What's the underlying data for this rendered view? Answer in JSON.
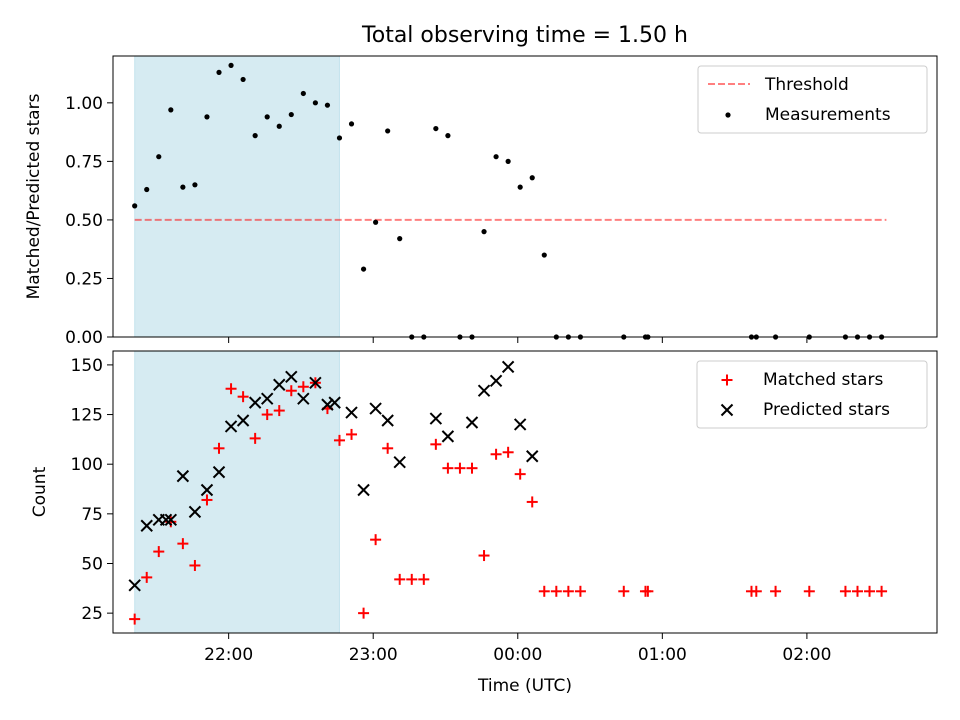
{
  "chart_data": [
    {
      "type": "scatter",
      "title": "Total observing time = 1.50 h",
      "xlabel": "",
      "ylabel": "Matched/Predicted stars",
      "xlim": [
        "21:12",
        "02:54"
      ],
      "ylim": [
        0,
        1.2
      ],
      "grid": false,
      "legend": "top-right",
      "x_tick_labels": [
        "22:00",
        "23:00",
        "00:00",
        "01:00",
        "02:00"
      ],
      "y_ticks": [
        0.0,
        0.25,
        0.5,
        0.75,
        1.0
      ],
      "y_tick_labels": [
        "0.00",
        "0.25",
        "0.50",
        "0.75",
        "1.00"
      ],
      "shaded_span": {
        "from": "21:21",
        "to": "22:46"
      },
      "threshold": {
        "name": "Threshold",
        "value": 0.5,
        "from": "21:21",
        "to": "02:33"
      },
      "series": [
        {
          "name": "Measurements",
          "x": [
            "21:21",
            "21:26",
            "21:31",
            "21:36",
            "21:41",
            "21:46",
            "21:51",
            "21:56",
            "22:01",
            "22:06",
            "22:11",
            "22:16",
            "22:21",
            "22:26",
            "22:31",
            "22:36",
            "22:41",
            "22:46",
            "22:51",
            "22:56",
            "23:01",
            "23:06",
            "23:11",
            "23:16",
            "23:21",
            "23:26",
            "23:31",
            "23:36",
            "23:41",
            "23:46",
            "23:51",
            "23:56",
            "00:01",
            "00:06",
            "00:11",
            "00:16",
            "00:21",
            "00:26",
            "00:44",
            "00:53",
            "00:54",
            "01:37",
            "01:39",
            "01:47",
            "02:01",
            "02:16",
            "02:21",
            "02:26",
            "02:31"
          ],
          "y": [
            0.56,
            0.63,
            0.77,
            0.97,
            0.64,
            0.65,
            0.94,
            1.13,
            1.16,
            1.1,
            0.86,
            0.94,
            0.9,
            0.95,
            1.04,
            1.0,
            0.99,
            0.85,
            0.91,
            0.29,
            0.49,
            0.88,
            0.42,
            0.0,
            0.0,
            0.89,
            0.86,
            0.0,
            0.0,
            0.45,
            0.77,
            0.75,
            0.64,
            0.68,
            0.35,
            0.0,
            0.0,
            0.0,
            0.0,
            0.0,
            0.0,
            0.0,
            0.0,
            0.0,
            0.0,
            0.0,
            0.0,
            0.0,
            0.0
          ]
        }
      ]
    },
    {
      "type": "scatter",
      "title": "",
      "xlabel": "Time (UTC)",
      "ylabel": "Count",
      "xlim": [
        "21:12",
        "02:54"
      ],
      "ylim": [
        15,
        157
      ],
      "grid": false,
      "legend": "top-right",
      "x_tick_labels": [
        "22:00",
        "23:00",
        "00:00",
        "01:00",
        "02:00"
      ],
      "y_ticks": [
        25,
        50,
        75,
        100,
        125,
        150
      ],
      "y_tick_labels": [
        "25",
        "50",
        "75",
        "100",
        "125",
        "150"
      ],
      "shaded_span": {
        "from": "21:21",
        "to": "22:46"
      },
      "series": [
        {
          "name": "Matched stars",
          "marker": "plus",
          "color": "#ff0000",
          "x": [
            "21:21",
            "21:26",
            "21:31",
            "21:36",
            "21:41",
            "21:46",
            "21:51",
            "21:56",
            "22:01",
            "22:06",
            "22:11",
            "22:16",
            "22:21",
            "22:26",
            "22:31",
            "22:36",
            "22:41",
            "22:46",
            "22:51",
            "22:56",
            "23:01",
            "23:06",
            "23:11",
            "23:16",
            "23:21",
            "23:26",
            "23:31",
            "23:36",
            "23:41",
            "23:46",
            "23:51",
            "23:56",
            "00:01",
            "00:06",
            "00:11",
            "00:16",
            "00:21",
            "00:26",
            "00:44",
            "00:53",
            "00:54",
            "01:37",
            "01:39",
            "01:47",
            "02:01",
            "02:16",
            "02:21",
            "02:26",
            "02:31"
          ],
          "y": [
            22,
            43,
            56,
            71,
            60,
            49,
            82,
            108,
            138,
            134,
            113,
            125,
            127,
            137,
            139,
            141,
            128,
            112,
            115,
            25,
            62,
            108,
            42,
            42,
            42,
            110,
            98,
            98,
            98,
            54,
            105,
            106,
            95,
            81,
            36,
            36,
            36,
            36,
            36,
            36,
            36,
            36,
            36,
            36,
            36,
            36,
            36,
            36,
            36
          ]
        },
        {
          "name": "Predicted stars",
          "marker": "x",
          "color": "#000000",
          "x": [
            "21:21",
            "21:26",
            "21:31",
            "21:34",
            "21:36",
            "21:41",
            "21:46",
            "21:51",
            "21:56",
            "22:01",
            "22:06",
            "22:11",
            "22:16",
            "22:21",
            "22:26",
            "22:31",
            "22:36",
            "22:41",
            "22:44",
            "22:51",
            "22:56",
            "23:01",
            "23:06",
            "23:11",
            "23:26",
            "23:31",
            "23:41",
            "23:46",
            "23:51",
            "23:56",
            "00:01",
            "00:06"
          ],
          "y": [
            39,
            69,
            72,
            72,
            72,
            94,
            76,
            87,
            96,
            119,
            122,
            131,
            133,
            140,
            144,
            133,
            141,
            130,
            131,
            126,
            87,
            128,
            122,
            101,
            123,
            114,
            121,
            137,
            142,
            149,
            120,
            104
          ]
        }
      ]
    }
  ]
}
